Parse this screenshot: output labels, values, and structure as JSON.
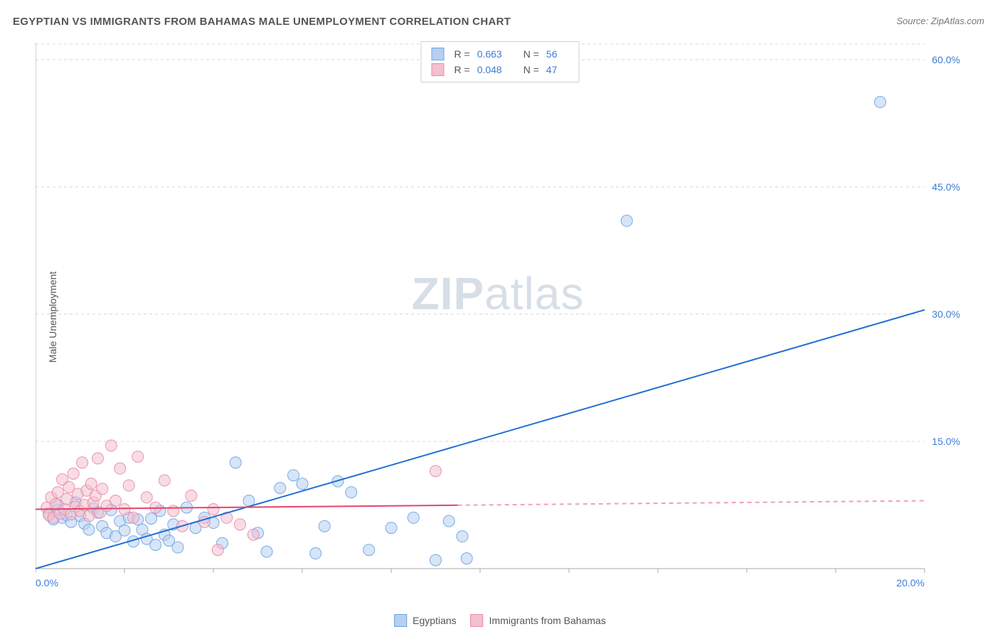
{
  "title": "EGYPTIAN VS IMMIGRANTS FROM BAHAMAS MALE UNEMPLOYMENT CORRELATION CHART",
  "source": "Source: ZipAtlas.com",
  "y_axis_label": "Male Unemployment",
  "watermark_zip": "ZIP",
  "watermark_atlas": "atlas",
  "chart": {
    "type": "scatter",
    "background_color": "#ffffff",
    "grid_color": "#d8d8d8",
    "axis_color": "#a8a8a8",
    "tick_color": "#3b7dd8",
    "xlim": [
      0,
      20
    ],
    "ylim": [
      0,
      62
    ],
    "x_ticks": [
      0,
      2,
      4,
      6,
      8,
      10,
      12,
      14,
      16,
      18,
      20
    ],
    "x_tick_labels": {
      "0": "0.0%",
      "20": "20.0%"
    },
    "y_ticks": [
      15,
      30,
      45,
      60
    ],
    "y_tick_labels": {
      "15": "15.0%",
      "30": "30.0%",
      "45": "45.0%",
      "60": "60.0%"
    },
    "marker_radius": 8,
    "marker_opacity": 0.55,
    "marker_stroke_opacity": 0.9,
    "line_width": 2
  },
  "series": [
    {
      "name": "Egyptians",
      "fill": "#b7cff0",
      "stroke": "#6aa3e5",
      "line_color": "#1f6fd4",
      "R_label": "R =",
      "R": "0.663",
      "N_label": "N =",
      "N": "56",
      "trend": {
        "x1": 0,
        "y1": 0,
        "x2": 20,
        "y2": 30.5,
        "dash_from_x": null
      },
      "points": [
        [
          0.3,
          6.5
        ],
        [
          0.4,
          5.8
        ],
        [
          0.5,
          6.9
        ],
        [
          0.5,
          7.5
        ],
        [
          0.6,
          6.0
        ],
        [
          0.7,
          6.3
        ],
        [
          0.8,
          5.5
        ],
        [
          0.9,
          7.8
        ],
        [
          1.0,
          6.2
        ],
        [
          1.1,
          5.3
        ],
        [
          1.2,
          4.6
        ],
        [
          1.3,
          7.1
        ],
        [
          1.4,
          6.6
        ],
        [
          1.5,
          5.0
        ],
        [
          1.6,
          4.2
        ],
        [
          1.7,
          6.9
        ],
        [
          1.8,
          3.8
        ],
        [
          1.9,
          5.6
        ],
        [
          2.0,
          4.5
        ],
        [
          2.1,
          6.0
        ],
        [
          2.2,
          3.2
        ],
        [
          2.3,
          5.8
        ],
        [
          2.4,
          4.6
        ],
        [
          2.5,
          3.5
        ],
        [
          2.6,
          5.9
        ],
        [
          2.7,
          2.8
        ],
        [
          2.8,
          6.8
        ],
        [
          2.9,
          4.0
        ],
        [
          3.0,
          3.3
        ],
        [
          3.1,
          5.2
        ],
        [
          3.2,
          2.5
        ],
        [
          3.4,
          7.2
        ],
        [
          3.6,
          4.8
        ],
        [
          3.8,
          6.0
        ],
        [
          4.0,
          5.4
        ],
        [
          4.2,
          3.0
        ],
        [
          4.5,
          12.5
        ],
        [
          4.8,
          8.0
        ],
        [
          5.0,
          4.2
        ],
        [
          5.2,
          2.0
        ],
        [
          5.5,
          9.5
        ],
        [
          5.8,
          11.0
        ],
        [
          6.0,
          10.0
        ],
        [
          6.3,
          1.8
        ],
        [
          6.5,
          5.0
        ],
        [
          6.8,
          10.3
        ],
        [
          7.1,
          9.0
        ],
        [
          7.5,
          2.2
        ],
        [
          8.0,
          4.8
        ],
        [
          8.5,
          6.0
        ],
        [
          9.0,
          1.0
        ],
        [
          9.3,
          5.6
        ],
        [
          9.6,
          3.8
        ],
        [
          9.7,
          1.2
        ],
        [
          13.3,
          41.0
        ],
        [
          19.0,
          55.0
        ]
      ]
    },
    {
      "name": "Immigrants from Bahamas",
      "fill": "#f3c0cd",
      "stroke": "#e98aa5",
      "line_color": "#e6426b",
      "R_label": "R =",
      "R": "0.048",
      "N_label": "N =",
      "N": "47",
      "trend": {
        "x1": 0,
        "y1": 7.0,
        "x2": 20,
        "y2": 8.0,
        "dash_from_x": 9.5
      },
      "points": [
        [
          0.25,
          7.2
        ],
        [
          0.3,
          6.3
        ],
        [
          0.35,
          8.4
        ],
        [
          0.4,
          6.0
        ],
        [
          0.45,
          7.6
        ],
        [
          0.5,
          9.0
        ],
        [
          0.55,
          6.5
        ],
        [
          0.6,
          10.5
        ],
        [
          0.65,
          7.0
        ],
        [
          0.7,
          8.2
        ],
        [
          0.75,
          9.6
        ],
        [
          0.8,
          6.4
        ],
        [
          0.85,
          11.2
        ],
        [
          0.9,
          7.3
        ],
        [
          0.95,
          8.8
        ],
        [
          1.0,
          6.8
        ],
        [
          1.05,
          12.5
        ],
        [
          1.1,
          7.5
        ],
        [
          1.15,
          9.2
        ],
        [
          1.2,
          6.2
        ],
        [
          1.25,
          10.0
        ],
        [
          1.3,
          7.8
        ],
        [
          1.35,
          8.6
        ],
        [
          1.4,
          13.0
        ],
        [
          1.45,
          6.6
        ],
        [
          1.5,
          9.4
        ],
        [
          1.6,
          7.4
        ],
        [
          1.7,
          14.5
        ],
        [
          1.8,
          8.0
        ],
        [
          1.9,
          11.8
        ],
        [
          2.0,
          7.0
        ],
        [
          2.1,
          9.8
        ],
        [
          2.2,
          6.0
        ],
        [
          2.3,
          13.2
        ],
        [
          2.5,
          8.4
        ],
        [
          2.7,
          7.2
        ],
        [
          2.9,
          10.4
        ],
        [
          3.1,
          6.8
        ],
        [
          3.3,
          5.0
        ],
        [
          3.5,
          8.6
        ],
        [
          3.8,
          5.5
        ],
        [
          4.0,
          7.0
        ],
        [
          4.1,
          2.2
        ],
        [
          4.3,
          6.0
        ],
        [
          4.6,
          5.2
        ],
        [
          4.9,
          4.0
        ],
        [
          9.0,
          11.5
        ]
      ]
    }
  ],
  "legend_bottom": [
    {
      "label": "Egyptians",
      "fill": "#b7cff0",
      "stroke": "#6aa3e5"
    },
    {
      "label": "Immigrants from Bahamas",
      "fill": "#f3c0cd",
      "stroke": "#e98aa5"
    }
  ]
}
